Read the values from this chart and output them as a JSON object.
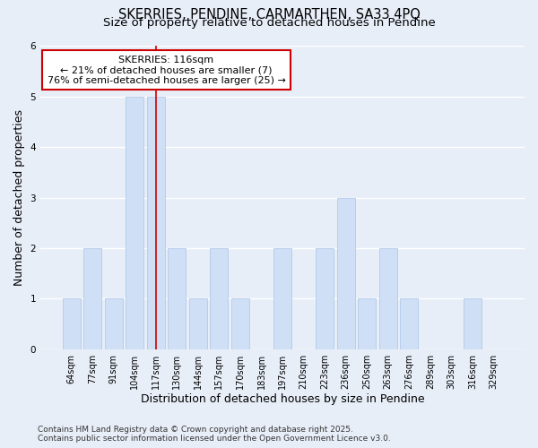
{
  "title": "SKERRIES, PENDINE, CARMARTHEN, SA33 4PQ",
  "subtitle": "Size of property relative to detached houses in Pendine",
  "xlabel": "Distribution of detached houses by size in Pendine",
  "ylabel": "Number of detached properties",
  "footer": "Contains HM Land Registry data © Crown copyright and database right 2025.\nContains public sector information licensed under the Open Government Licence v3.0.",
  "categories": [
    "64sqm",
    "77sqm",
    "91sqm",
    "104sqm",
    "117sqm",
    "130sqm",
    "144sqm",
    "157sqm",
    "170sqm",
    "183sqm",
    "197sqm",
    "210sqm",
    "223sqm",
    "236sqm",
    "250sqm",
    "263sqm",
    "276sqm",
    "289sqm",
    "303sqm",
    "316sqm",
    "329sqm"
  ],
  "values": [
    1,
    2,
    1,
    5,
    5,
    2,
    1,
    2,
    1,
    0,
    2,
    0,
    2,
    3,
    1,
    2,
    1,
    0,
    0,
    1,
    0
  ],
  "bar_color": "#cfdff5",
  "bar_edge_color": "#a8c4e8",
  "background_color": "#e8eef8",
  "grid_color": "#ffffff",
  "ylim": [
    0,
    6
  ],
  "yticks": [
    0,
    1,
    2,
    3,
    4,
    5,
    6
  ],
  "annotation_text": "SKERRIES: 116sqm\n← 21% of detached houses are smaller (7)\n76% of semi-detached houses are larger (25) →",
  "vline_x_index": 4,
  "ann_box_color": "#ffffff",
  "ann_box_edge": "#cc0000",
  "vline_color": "#cc0000",
  "title_fontsize": 10.5,
  "subtitle_fontsize": 9.5,
  "tick_fontsize": 7,
  "label_fontsize": 9,
  "ann_fontsize": 8,
  "footer_fontsize": 6.5
}
